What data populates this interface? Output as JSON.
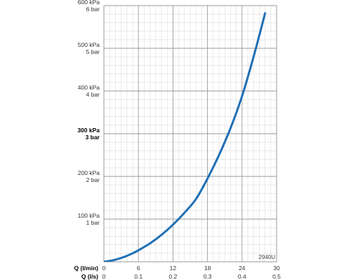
{
  "chart_data": {
    "type": "line",
    "code": "2940U",
    "series": [
      {
        "x": [
          0,
          1,
          2,
          3,
          4,
          5,
          6,
          8,
          10,
          12,
          14,
          16,
          18,
          20,
          22,
          24,
          26,
          28
        ],
        "y": [
          0,
          2,
          5,
          9,
          14,
          20,
          27,
          43,
          63,
          87,
          115,
          147,
          195,
          250,
          313,
          388,
          480,
          582
        ],
        "color": "#1f6fb5"
      }
    ],
    "x_axis_primary": {
      "label": "Q (l/min)",
      "min": 0,
      "max": 30,
      "ticks": [
        {
          "value": 0,
          "label": "0"
        },
        {
          "value": 6,
          "label": "6"
        },
        {
          "value": 12,
          "label": "12"
        },
        {
          "value": 18,
          "label": "18"
        },
        {
          "value": 24,
          "label": "24"
        },
        {
          "value": 30,
          "label": "30"
        }
      ]
    },
    "x_axis_secondary": {
      "label": "Q (l/s)",
      "min": 0,
      "max": 0.5,
      "ticks": [
        {
          "value": 0,
          "label": "0"
        },
        {
          "value": 0.1,
          "label": "0.1"
        },
        {
          "value": 0.2,
          "label": "0.2"
        },
        {
          "value": 0.3,
          "label": "0.3"
        },
        {
          "value": 0.4,
          "label": "0.4"
        },
        {
          "value": 0.5,
          "label": "0.5"
        }
      ]
    },
    "y_axis": {
      "min": 0,
      "max": 600,
      "unit": "kPa",
      "ticks": [
        {
          "value": 100,
          "kpa": "100 kPa",
          "bar": "1 bar",
          "bold": false
        },
        {
          "value": 200,
          "kpa": "200 kPa",
          "bar": "2 bar",
          "bold": false
        },
        {
          "value": 300,
          "kpa": "300 kPa",
          "bar": "3 bar",
          "bold": true
        },
        {
          "value": 400,
          "kpa": "400 kPa",
          "bar": "4 bar",
          "bold": false
        },
        {
          "value": 500,
          "kpa": "500 kPa",
          "bar": "5 bar",
          "bold": false
        },
        {
          "value": 600,
          "kpa": "600 kPa",
          "bar": "6 bar",
          "bold": false
        }
      ]
    },
    "grid": true
  }
}
